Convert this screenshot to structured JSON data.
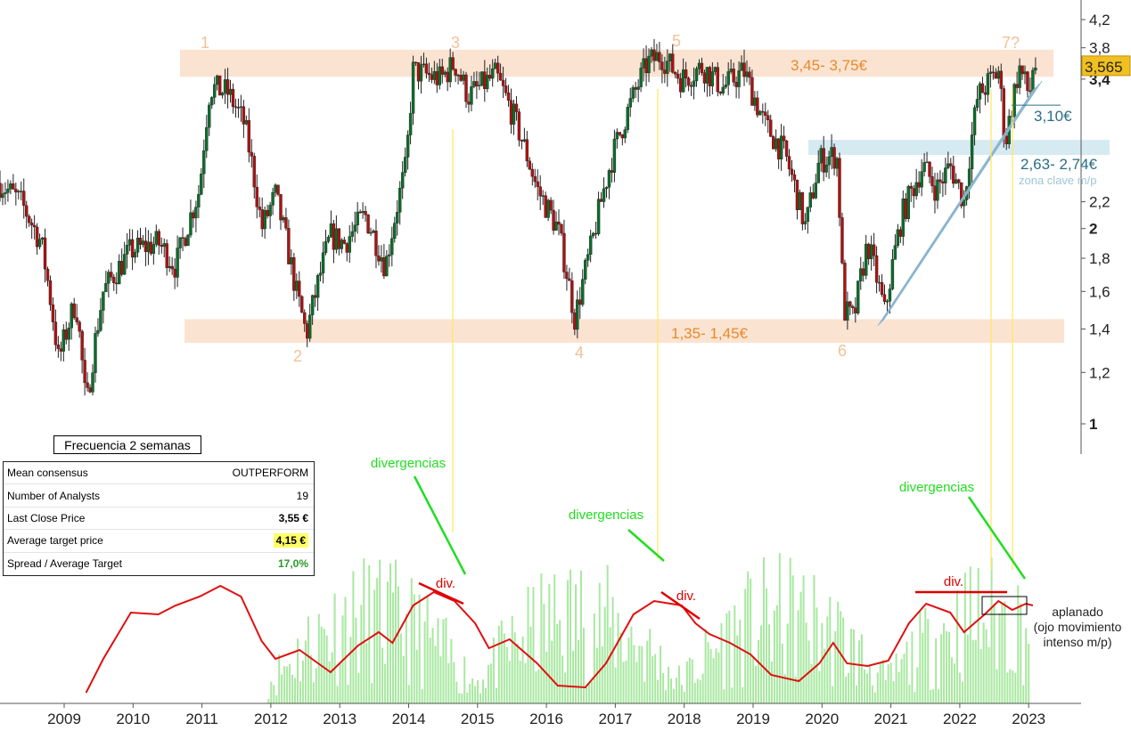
{
  "chart_data": {
    "type": "candlestick",
    "title": "",
    "frequency_label": "Frecuencia 2 semanas",
    "x_ticks": [
      "2009",
      "2010",
      "2011",
      "2012",
      "2013",
      "2014",
      "2015",
      "2016",
      "2017",
      "2018",
      "2019",
      "2020",
      "2021",
      "2022",
      "2023"
    ],
    "y_ticks": [
      "4,2",
      "3,8",
      "3,4",
      "2,2",
      "2",
      "1,8",
      "1,6",
      "1,4",
      "1,2",
      "1"
    ],
    "y_scale": "log",
    "ylim": [
      0.9,
      4.3
    ],
    "last_price_label": "3,565",
    "price_path": [
      [
        "2008.00",
        2.35
      ],
      [
        "2008.30",
        2.2
      ],
      [
        "2008.60",
        1.9
      ],
      [
        "2008.85",
        1.25
      ],
      [
        "2009.10",
        1.55
      ],
      [
        "2009.25",
        1.05
      ],
      [
        "2009.50",
        1.6
      ],
      [
        "2009.90",
        1.85
      ],
      [
        "2010.30",
        1.9
      ],
      [
        "2010.55",
        1.75
      ],
      [
        "2010.90",
        2.3
      ],
      [
        "2011.05",
        3.3
      ],
      [
        "2011.30",
        3.25
      ],
      [
        "2011.55",
        2.9
      ],
      [
        "2011.80",
        2.0
      ],
      [
        "2012.00",
        2.25
      ],
      [
        "2012.30",
        1.6
      ],
      [
        "2012.45",
        1.37
      ],
      [
        "2012.80",
        1.95
      ],
      [
        "2013.00",
        1.9
      ],
      [
        "2013.30",
        2.1
      ],
      [
        "2013.60",
        1.75
      ],
      [
        "2013.90",
        2.5
      ],
      [
        "2014.00",
        3.5
      ],
      [
        "2014.40",
        3.4
      ],
      [
        "2014.60",
        3.6
      ],
      [
        "2014.80",
        3.2
      ],
      [
        "2015.20",
        3.45
      ],
      [
        "2015.50",
        2.9
      ],
      [
        "2015.80",
        2.3
      ],
      [
        "2016.10",
        2.0
      ],
      [
        "2016.35",
        1.45
      ],
      [
        "2016.60",
        1.9
      ],
      [
        "2016.90",
        2.6
      ],
      [
        "2017.10",
        3.0
      ],
      [
        "2017.40",
        3.6
      ],
      [
        "2017.60",
        3.7
      ],
      [
        "2017.90",
        3.4
      ],
      [
        "2018.20",
        3.55
      ],
      [
        "2018.50",
        3.3
      ],
      [
        "2018.80",
        3.5
      ],
      [
        "2019.10",
        2.9
      ],
      [
        "2019.40",
        2.6
      ],
      [
        "2019.70",
        2.0
      ],
      [
        "2019.90",
        2.55
      ],
      [
        "2020.15",
        2.6
      ],
      [
        "2020.25",
        1.5
      ],
      [
        "2020.40",
        1.45
      ],
      [
        "2020.60",
        1.9
      ],
      [
        "2020.85",
        1.48
      ],
      [
        "2021.10",
        2.1
      ],
      [
        "2021.40",
        2.5
      ],
      [
        "2021.60",
        2.3
      ],
      [
        "2021.80",
        2.5
      ],
      [
        "2022.00",
        2.2
      ],
      [
        "2022.20",
        3.2
      ],
      [
        "2022.50",
        3.5
      ],
      [
        "2022.60",
        2.7
      ],
      [
        "2022.80",
        3.55
      ],
      [
        "2022.95",
        3.2
      ],
      [
        "2023.00",
        3.55
      ],
      [
        "2023.05",
        3.565
      ]
    ],
    "resistance_zone": {
      "label": "3,45- 3,75€",
      "low": 3.45,
      "high": 3.75
    },
    "support_zone": {
      "label": "1,35- 1,45€",
      "low": 1.35,
      "high": 1.45
    },
    "key_zone": {
      "label": "2,63- 2,74€",
      "sublabel": "zona clave m/p",
      "low": 2.63,
      "high": 2.74
    },
    "level_310": {
      "label": "3,10€",
      "value": 3.1
    },
    "pivot_labels": [
      {
        "label": "1",
        "x": 2011.05,
        "pos": "top"
      },
      {
        "label": "2",
        "x": 2012.45,
        "pos": "bottom"
      },
      {
        "label": "3",
        "x": 2014.6,
        "pos": "top"
      },
      {
        "label": "4",
        "x": 2016.35,
        "pos": "bottom"
      },
      {
        "label": "5",
        "x": 2017.6,
        "pos": "top"
      },
      {
        "label": "6",
        "x": 2020.3,
        "pos": "bottom"
      },
      {
        "label": "7?",
        "x": 2022.7,
        "pos": "top"
      }
    ],
    "indicator": {
      "annotations": [
        {
          "text": "divergencias",
          "color": "#22dd22"
        },
        {
          "text": "div.",
          "color": "#dd0000"
        },
        {
          "text": "divergencias",
          "color": "#22dd22"
        },
        {
          "text": "div.",
          "color": "#dd0000"
        },
        {
          "text": "divergencias",
          "color": "#22dd22"
        },
        {
          "text": "div.",
          "color": "#dd0000"
        }
      ],
      "flat_note": [
        "aplanado",
        "(ojo movimiento",
        "intenso m/p)"
      ]
    }
  },
  "consensus": [
    {
      "label": "Mean consensus",
      "value": "OUTPERFORM",
      "style": ""
    },
    {
      "label": "Number of Analysts",
      "value": "19",
      "style": ""
    },
    {
      "label": "Last Close Price",
      "value": "3,55 €",
      "style": "bold"
    },
    {
      "label": "Average target price",
      "value": "4,15 €",
      "style": "hl"
    },
    {
      "label": "Spread / Average Target",
      "value": "17,0%",
      "style": "green"
    }
  ],
  "colors": {
    "up": "#0a6e2a",
    "down": "#b01010",
    "resistance": "#fbe3d2",
    "key_zone": "#d6eaf2",
    "label_orange": "#e88a2a",
    "label_teal": "#2a6e86",
    "volume": "#a8e8a0",
    "osc": "#e01010"
  }
}
